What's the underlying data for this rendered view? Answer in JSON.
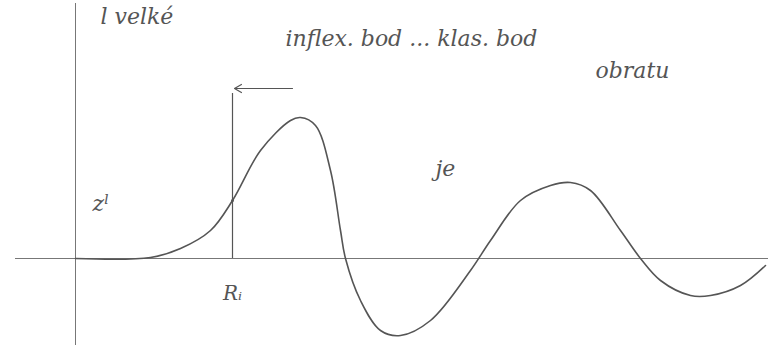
{
  "chart_data": {
    "type": "line",
    "annotations": [
      "l velké",
      "inflex. bod ... klas. bod",
      "obratu",
      "je",
      "zˡ"
    ],
    "x": [
      0,
      75,
      105,
      135,
      157,
      185,
      215,
      225,
      240,
      255,
      265,
      270,
      285,
      305,
      325,
      355,
      395,
      415,
      445,
      475,
      495,
      515,
      545,
      565,
      585,
      615,
      635,
      665,
      690
    ],
    "values": [
      0,
      1,
      10,
      28,
      58,
      108,
      138,
      141,
      133,
      88,
      28,
      0,
      -42,
      -72,
      -77,
      -62,
      -12,
      18,
      58,
      73,
      76,
      68,
      28,
      0,
      -22,
      -37,
      -37,
      -27,
      -7
    ],
    "color": "#555555",
    "line_style": "solid",
    "xlim": [
      -60,
      693
    ],
    "ylim": [
      -87,
      255
    ],
    "xticks": [
      {
        "value": 157,
        "label": "Rᵢ"
      }
    ],
    "tick_labels": "x",
    "grid": false
  }
}
